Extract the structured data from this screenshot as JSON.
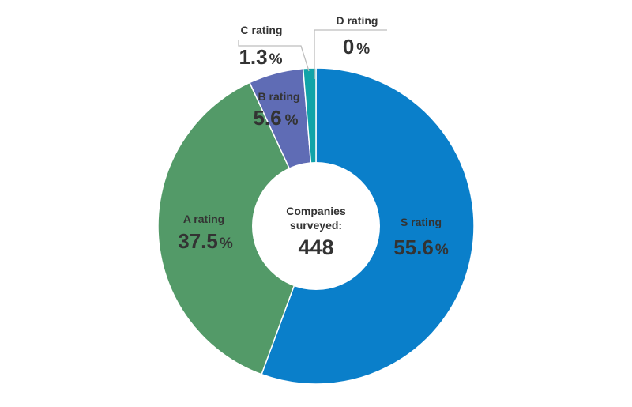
{
  "chart_data": {
    "type": "pie",
    "title": "",
    "center": {
      "label_line1": "Companies",
      "label_line2": "surveyed:",
      "count": "448"
    },
    "unit": "%",
    "slices": [
      {
        "name": "S rating",
        "value": 55.6,
        "display": "55.6",
        "color": "#0a7fca"
      },
      {
        "name": "A rating",
        "value": 37.5,
        "display": "37.5",
        "color": "#539a68"
      },
      {
        "name": "B rating",
        "value": 5.6,
        "display": "5.6",
        "color": "#5f6cb5"
      },
      {
        "name": "C rating",
        "value": 1.3,
        "display": "1.3",
        "color": "#11a3a8"
      },
      {
        "name": "D rating",
        "value": 0,
        "display": "0",
        "color": "#7f7f7f"
      }
    ]
  }
}
